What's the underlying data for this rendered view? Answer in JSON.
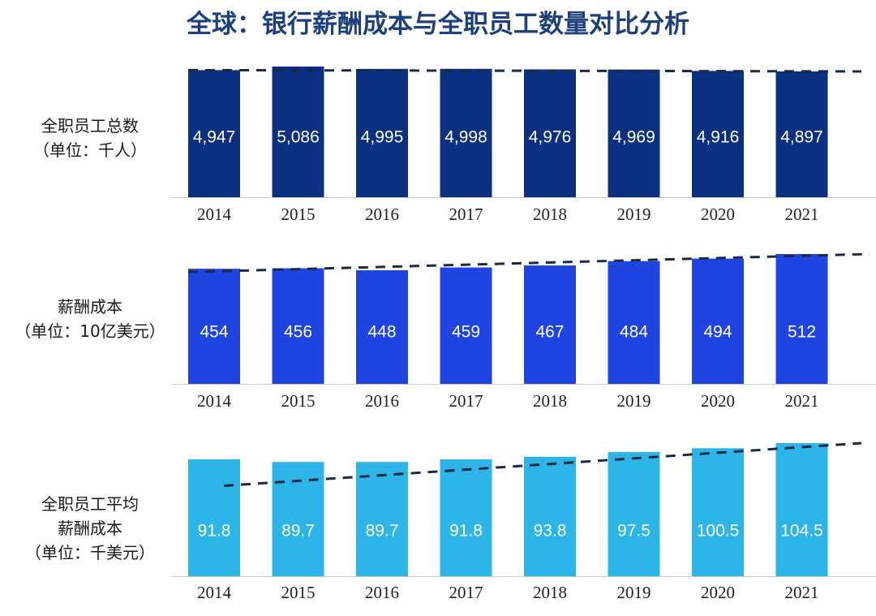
{
  "title": "全球：银行薪酬成本与全职员工数量对比分析",
  "chart_data": [
    {
      "type": "bar",
      "label_lines": [
        "全职员工总数",
        "（单位：千人）"
      ],
      "categories": [
        "2014",
        "2015",
        "2016",
        "2017",
        "2018",
        "2019",
        "2020",
        "2021"
      ],
      "values": [
        4947,
        5086,
        4995,
        4998,
        4976,
        4969,
        4916,
        4897
      ],
      "value_labels": [
        "4,947",
        "5,086",
        "4,995",
        "4,998",
        "4,976",
        "4,969",
        "4,916",
        "4,897"
      ],
      "ylim": [
        0,
        5086
      ],
      "trend": [
        4947,
        4897
      ],
      "color": "#0b3082",
      "grid": false
    },
    {
      "type": "bar",
      "label_lines": [
        "薪酬成本",
        "（单位：10亿美元）"
      ],
      "categories": [
        "2014",
        "2015",
        "2016",
        "2017",
        "2018",
        "2019",
        "2020",
        "2021"
      ],
      "values": [
        454,
        456,
        448,
        459,
        467,
        484,
        494,
        512
      ],
      "value_labels": [
        "454",
        "456",
        "448",
        "459",
        "467",
        "484",
        "494",
        "512"
      ],
      "ylim": [
        0,
        512
      ],
      "trend": [
        441,
        512
      ],
      "color": "#2044e0",
      "grid": false
    },
    {
      "type": "bar",
      "label_lines": [
        "全职员工平均",
        "薪酬成本",
        "（单位：千美元）"
      ],
      "categories": [
        "2014",
        "2015",
        "2016",
        "2017",
        "2018",
        "2019",
        "2020",
        "2021"
      ],
      "values": [
        91.8,
        89.7,
        89.7,
        91.8,
        93.8,
        97.5,
        100.5,
        104.5
      ],
      "value_labels": [
        "91.8",
        "89.7",
        "89.7",
        "91.8",
        "93.8",
        "97.5",
        "100.5",
        "104.5"
      ],
      "ylim": [
        0,
        104.5
      ],
      "trend": [
        71,
        104.5
      ],
      "color": "#2eb5e8",
      "grid": false
    }
  ]
}
